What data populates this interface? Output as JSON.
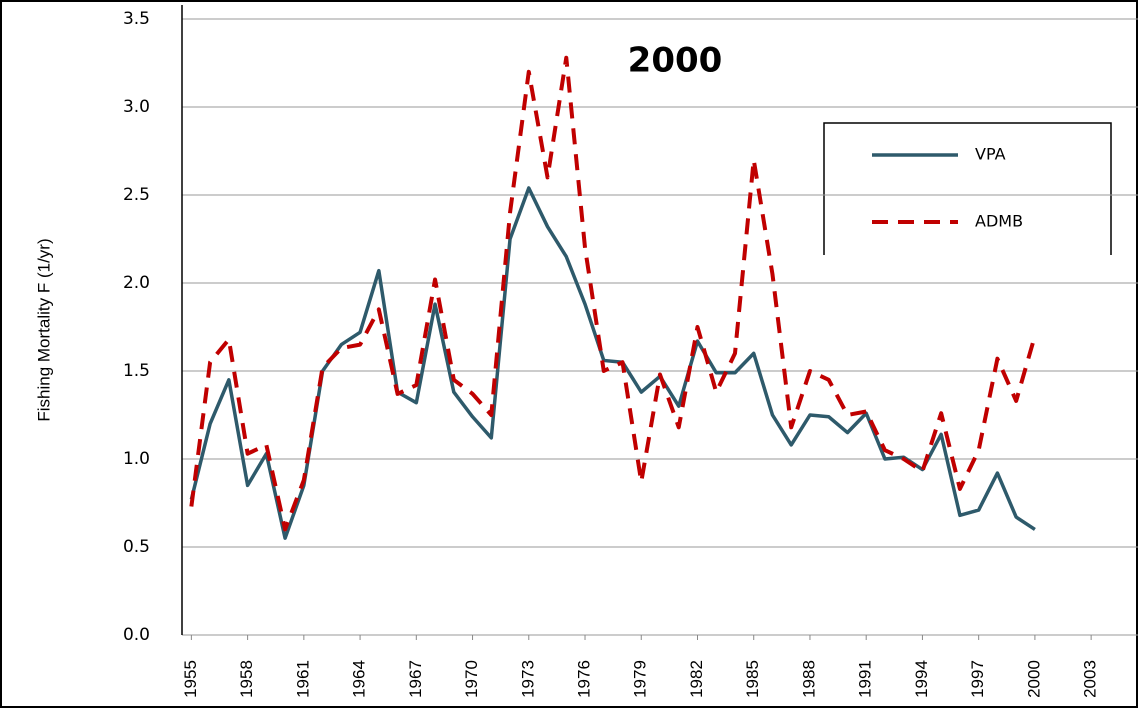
{
  "chart_data": {
    "type": "line",
    "title": "2000",
    "y_label": "Fishing Mortality F (1/yr)",
    "x": [
      1955,
      1956,
      1957,
      1958,
      1959,
      1960,
      1961,
      1962,
      1963,
      1964,
      1965,
      1966,
      1967,
      1968,
      1969,
      1970,
      1971,
      1972,
      1973,
      1974,
      1975,
      1976,
      1977,
      1978,
      1979,
      1980,
      1981,
      1982,
      1983,
      1984,
      1985,
      1986,
      1987,
      1988,
      1989,
      1990,
      1991,
      1992,
      1993,
      1994,
      1995,
      1996,
      1997,
      1998,
      1999,
      2000
    ],
    "series": [
      {
        "name": "VPA",
        "color": "#2e5a6b",
        "dash": false,
        "values": [
          0.77,
          1.2,
          1.45,
          0.85,
          1.03,
          0.55,
          0.85,
          1.5,
          1.65,
          1.72,
          2.07,
          1.38,
          1.32,
          1.88,
          1.38,
          1.24,
          1.12,
          2.25,
          2.54,
          2.32,
          2.15,
          1.88,
          1.56,
          1.55,
          1.38,
          1.47,
          1.3,
          1.67,
          1.49,
          1.49,
          1.6,
          1.25,
          1.08,
          1.25,
          1.24,
          1.15,
          1.26,
          1.0,
          1.01,
          0.94,
          1.14,
          0.68,
          0.71,
          0.92,
          0.67,
          0.6
        ]
      },
      {
        "name": "ADMB",
        "color": "#c00000",
        "dash": true,
        "values": [
          0.73,
          1.55,
          1.68,
          1.03,
          1.08,
          0.6,
          0.88,
          1.52,
          1.63,
          1.65,
          1.85,
          1.37,
          1.42,
          2.02,
          1.45,
          1.37,
          1.25,
          2.4,
          3.2,
          2.6,
          3.28,
          2.2,
          1.5,
          1.55,
          0.87,
          1.48,
          1.18,
          1.75,
          1.38,
          1.6,
          2.7,
          2.05,
          1.18,
          1.5,
          1.45,
          1.25,
          1.27,
          1.05,
          1.0,
          0.93,
          1.26,
          0.83,
          1.05,
          1.57,
          1.33,
          1.7
        ]
      }
    ],
    "xlim": [
      1954.5,
      2005.5
    ],
    "xticks": [
      1955,
      1958,
      1961,
      1964,
      1967,
      1970,
      1973,
      1976,
      1979,
      1982,
      1985,
      1988,
      1991,
      1994,
      1997,
      2000,
      2003
    ],
    "ylim": [
      0,
      3.5
    ],
    "yticks": [
      {
        "value": 0,
        "label": "0.0"
      },
      0.5,
      {
        "value": 1,
        "label": "1.0"
      },
      1.5,
      {
        "value": 2,
        "label": "2.0"
      },
      2.5,
      {
        "value": 3,
        "label": "3.0"
      },
      3.5
    ],
    "grid": true
  }
}
